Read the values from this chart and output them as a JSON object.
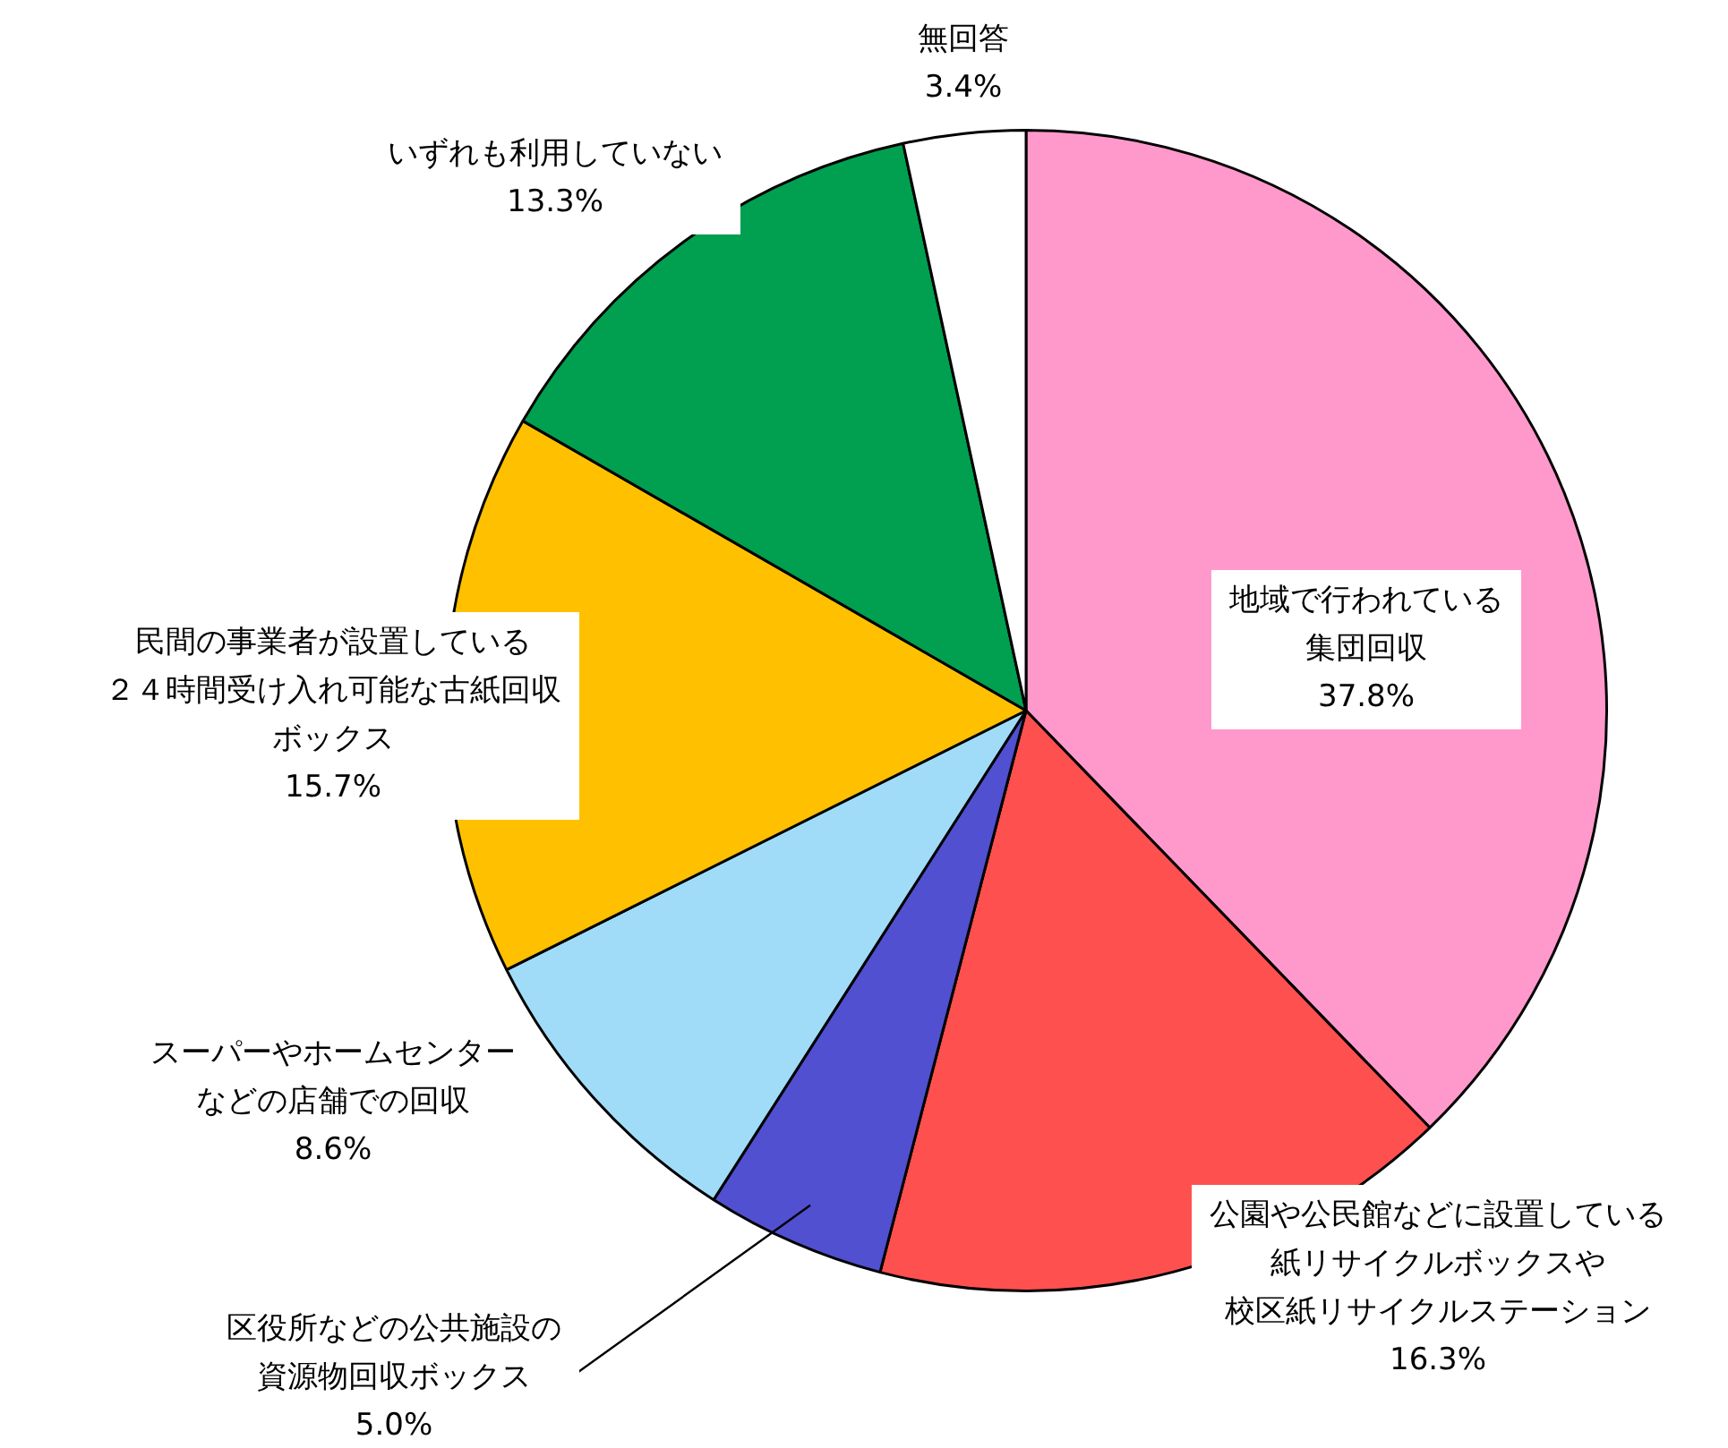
{
  "chart_data": {
    "type": "pie",
    "categories": [
      "地域で行われている集団回収",
      "公園や公民館などに設置している紙リサイクルボックスや校区紙リサイクルステーション",
      "区役所などの公共施設の資源物回収ボックス",
      "スーパーやホームセンターなどの店舗での回収",
      "民間の事業者が設置している２４時間受け入れ可能な古紙回収ボックス",
      "いずれも利用していない",
      "無回答"
    ],
    "values": [
      37.8,
      16.3,
      5.0,
      8.6,
      15.7,
      13.3,
      3.4
    ],
    "value_labels": [
      "37.8%",
      "16.3%",
      "5.0%",
      "8.6%",
      "15.7%",
      "13.3%",
      "3.4%"
    ],
    "colors": [
      "#ff99cc",
      "#ff5050",
      "#5050d0",
      "#a0dcf8",
      "#ffc000",
      "#00a050",
      "#ffffff"
    ],
    "legend": false
  }
}
